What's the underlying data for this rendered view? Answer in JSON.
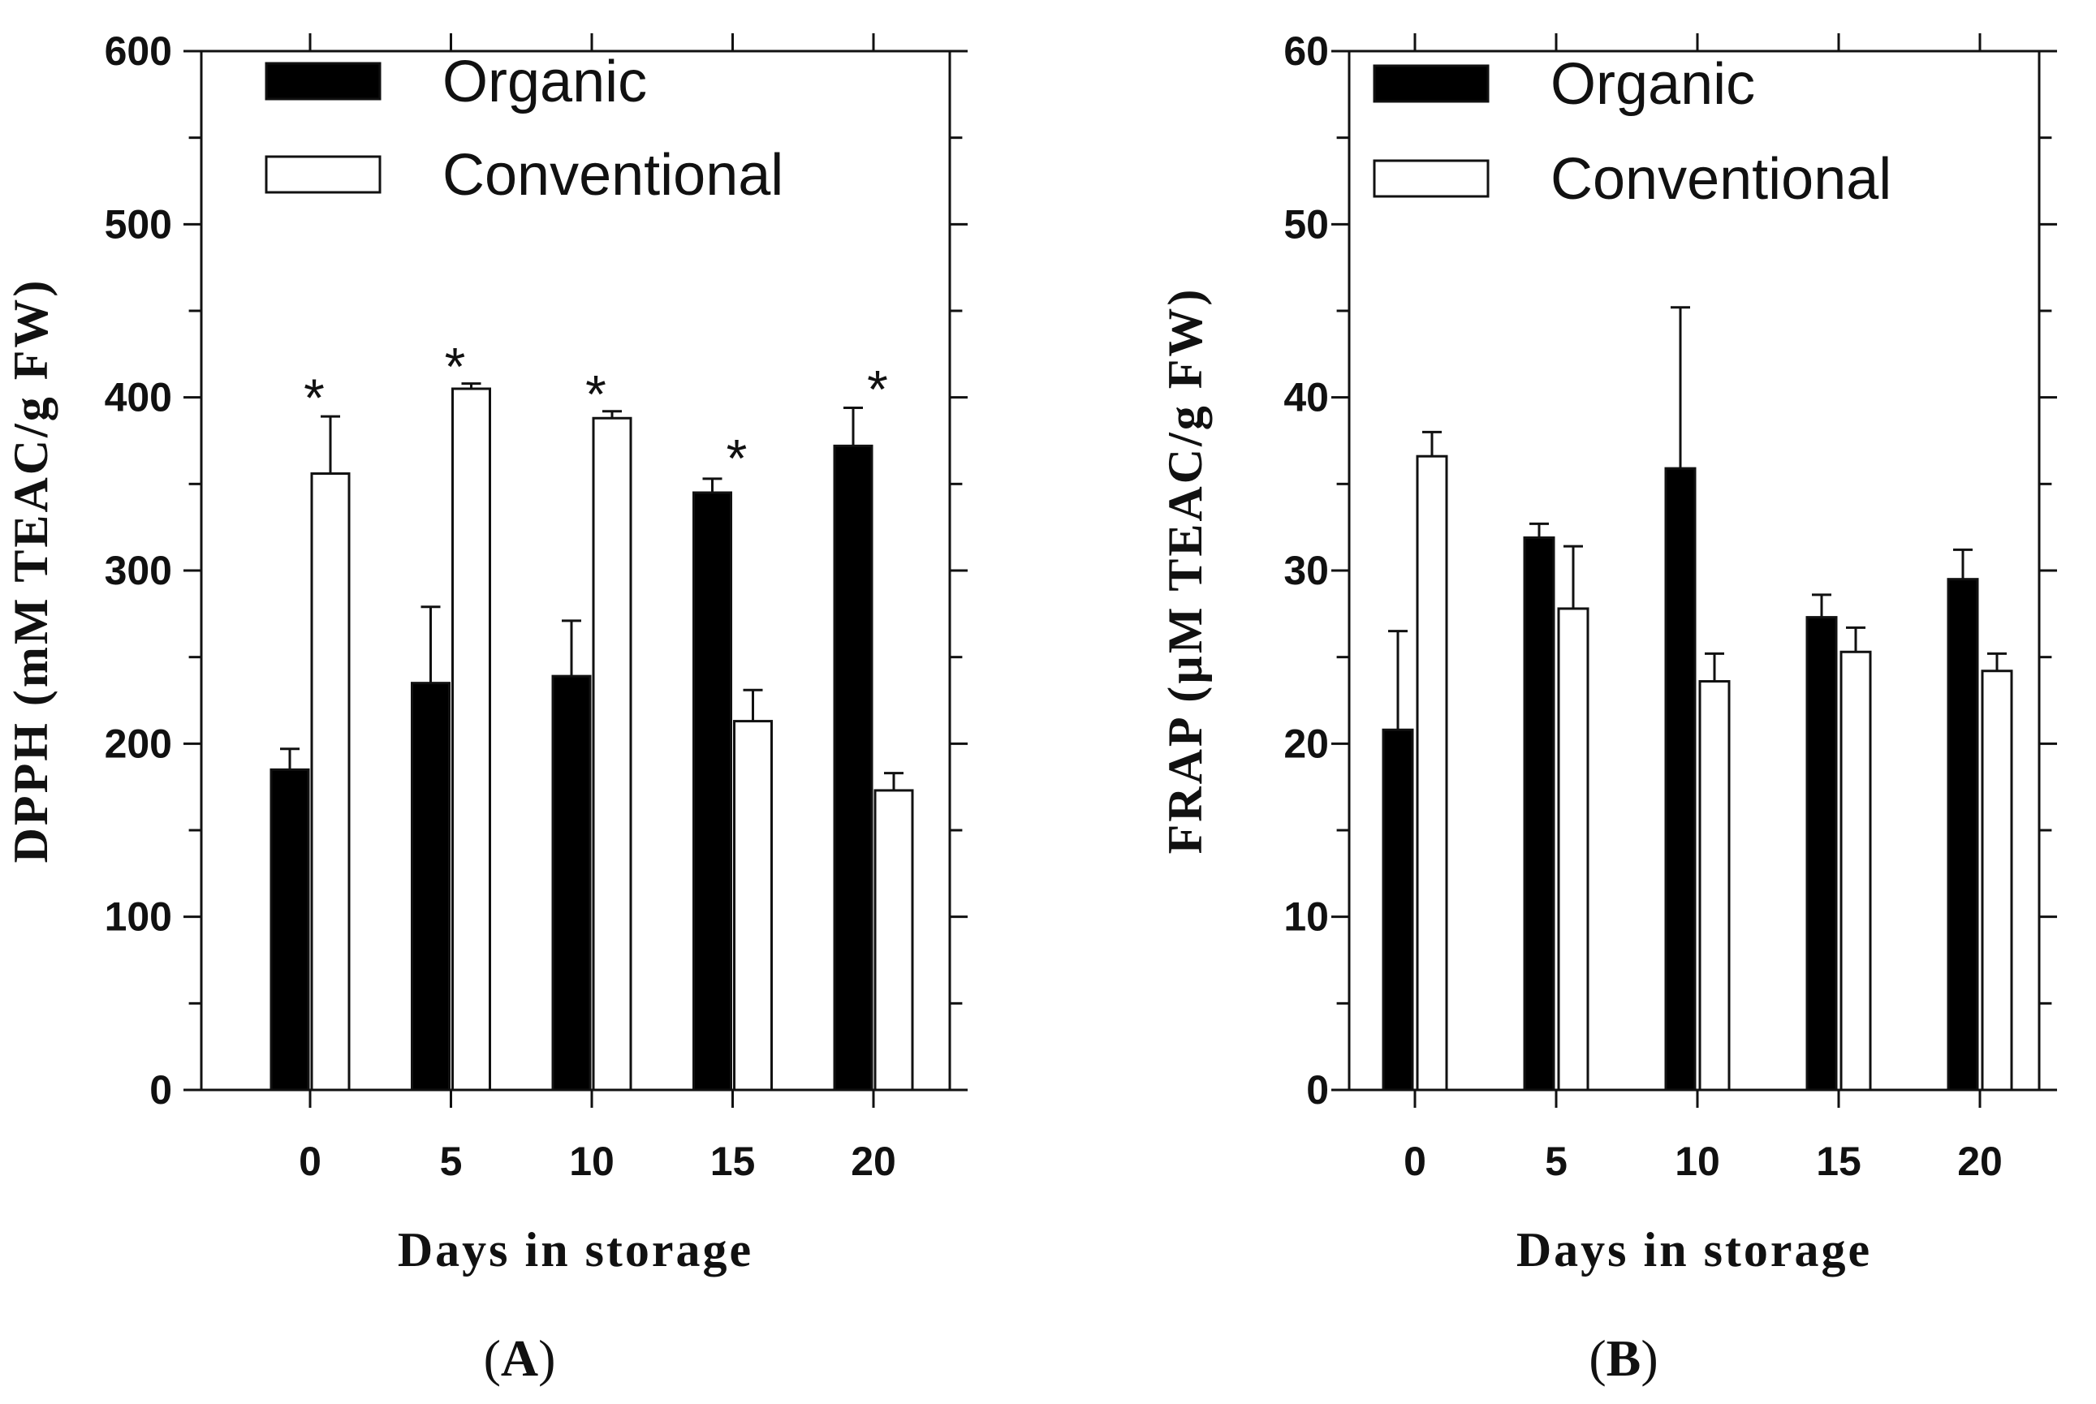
{
  "chart_data": [
    {
      "type": "bar",
      "panel": "A",
      "panel_label": {
        "open": "(",
        "letter": "A",
        "close": ")"
      },
      "categories": [
        "0",
        "5",
        "10",
        "15",
        "20"
      ],
      "series": [
        {
          "name": "Organic",
          "fill": "#000000",
          "values": [
            185,
            235,
            239,
            345,
            372
          ],
          "errors": [
            12,
            44,
            32,
            8,
            22
          ]
        },
        {
          "name": "Conventional",
          "fill": "#ffffff",
          "values": [
            356,
            405,
            388,
            213,
            173
          ],
          "errors": [
            33,
            3,
            4,
            18,
            10
          ]
        }
      ],
      "significance": [
        {
          "category_index": 0,
          "symbol": "*",
          "above_value": 390
        },
        {
          "category_index": 1,
          "symbol": "*",
          "above_value": 408
        },
        {
          "category_index": 2,
          "symbol": "*",
          "above_value": 392
        },
        {
          "category_index": 3,
          "symbol": "*",
          "above_value": 355
        },
        {
          "category_index": 4,
          "symbol": "*",
          "above_value": 395
        }
      ],
      "ylim": [
        0,
        600
      ],
      "yticks": [
        "0",
        "100",
        "200",
        "300",
        "400",
        "500",
        "600"
      ],
      "ylabel": "DPPH (mM TEAC/g FW)",
      "xlabel": "Days in storage",
      "legend_position": "top-left"
    },
    {
      "type": "bar",
      "panel": "B",
      "panel_label": {
        "open": "(",
        "letter": "B",
        "close": ")"
      },
      "categories": [
        "0",
        "5",
        "10",
        "15",
        "20"
      ],
      "series": [
        {
          "name": "Organic",
          "fill": "#000000",
          "values": [
            20.8,
            31.9,
            35.9,
            27.3,
            29.5
          ],
          "errors": [
            5.7,
            0.8,
            9.3,
            1.3,
            1.7
          ]
        },
        {
          "name": "Conventional",
          "fill": "#ffffff",
          "values": [
            36.6,
            27.8,
            23.6,
            25.3,
            24.2
          ],
          "errors": [
            1.4,
            3.6,
            1.6,
            1.4,
            1.0
          ]
        }
      ],
      "significance": [],
      "ylim": [
        0,
        60
      ],
      "yticks": [
        "0",
        "10",
        "20",
        "30",
        "40",
        "50",
        "60"
      ],
      "ylabel": "FRAP (µM TEAC/g FW)",
      "xlabel": "Days in storage",
      "legend_position": "top-left"
    }
  ]
}
